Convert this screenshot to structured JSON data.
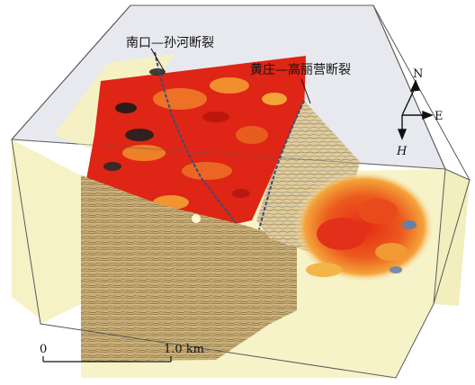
{
  "figure": {
    "fault_labels": {
      "fault_1": "南口—孙河断裂",
      "fault_2": "黄庄—高丽营断裂"
    },
    "compass": {
      "north": "N",
      "east": "E",
      "depth": "H"
    },
    "scale_bar": {
      "start": "0",
      "end": "1.0 km"
    },
    "colors": {
      "background_cube": "#f7f3c8",
      "hot": "#e8321c",
      "deep_red": "#d5180f",
      "yellow": "#f0c032",
      "top_face": "#e6e8ec",
      "edge": "#555555"
    }
  }
}
